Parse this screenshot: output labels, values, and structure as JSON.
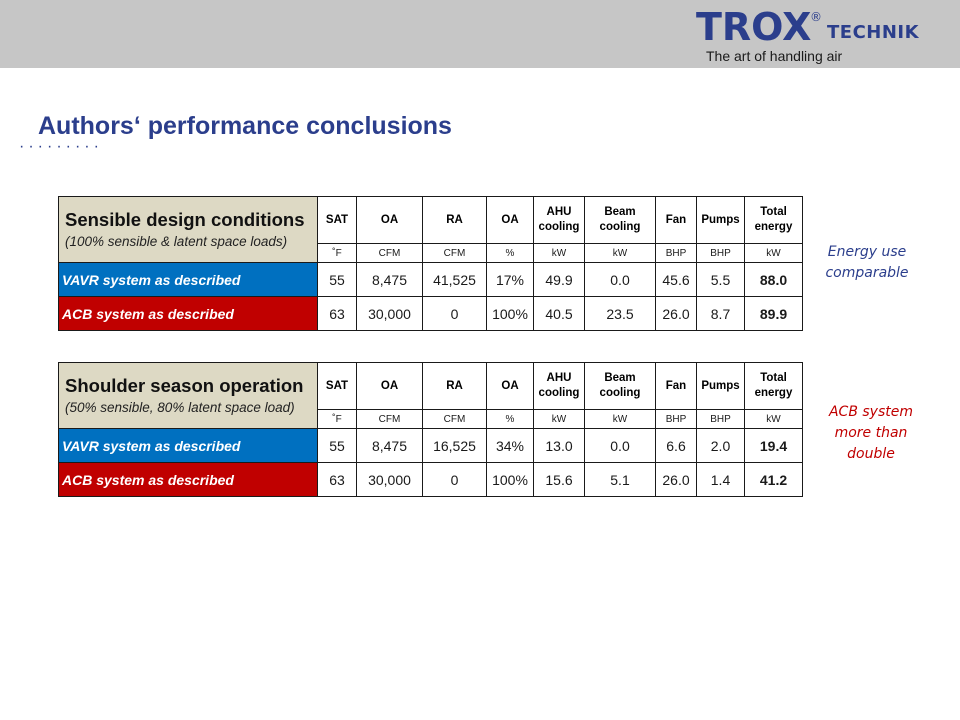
{
  "header": {
    "logo_text": "TROX",
    "logo_registered": "®",
    "logo_word": "TECHNIK",
    "tagline": "The art of handling air",
    "colors": {
      "band": "#c6c6c6",
      "brand": "#2b3e8c"
    }
  },
  "page": {
    "title": "Authors‘ performance conclusions",
    "dots": "·········"
  },
  "tables": [
    {
      "title": "Sensible design conditions",
      "subtitle": "(100% sensible & latent space loads)",
      "headers": [
        "SAT",
        "OA",
        "RA",
        "OA",
        "AHU cooling",
        "Beam cooling",
        "Fan",
        "Pumps",
        "Total energy"
      ],
      "units": [
        "˚F",
        "CFM",
        "CFM",
        "%",
        "kW",
        "kW",
        "BHP",
        "BHP",
        "kW"
      ],
      "rows": [
        {
          "label": "VAVR system as described",
          "values": [
            "55",
            "8,475",
            "41,525",
            "17%",
            "49.9",
            "0.0",
            "45.6",
            "5.5",
            "88.0"
          ]
        },
        {
          "label": "ACB system as described",
          "values": [
            "63",
            "30,000",
            "0",
            "100%",
            "40.5",
            "23.5",
            "26.0",
            "8.7",
            "89.9"
          ]
        }
      ]
    },
    {
      "title": "Shoulder season operation",
      "subtitle": "(50% sensible, 80% latent space load)",
      "headers": [
        "SAT",
        "OA",
        "RA",
        "OA",
        "AHU cooling",
        "Beam cooling",
        "Fan",
        "Pumps",
        "Total energy"
      ],
      "units": [
        "˚F",
        "CFM",
        "CFM",
        "%",
        "kW",
        "kW",
        "BHP",
        "BHP",
        "kW"
      ],
      "rows": [
        {
          "label": "VAVR system as described",
          "values": [
            "55",
            "8,475",
            "16,525",
            "34%",
            "13.0",
            "0.0",
            "6.6",
            "2.0",
            "19.4"
          ]
        },
        {
          "label": "ACB system as described",
          "values": [
            "63",
            "30,000",
            "0",
            "100%",
            "15.6",
            "5.1",
            "26.0",
            "1.4",
            "41.2"
          ]
        }
      ]
    }
  ],
  "notes": [
    {
      "text": "Energy use comparable",
      "color": "#2b3e8c"
    },
    {
      "text": "ACB system more than double",
      "color": "#c00000"
    }
  ],
  "colors": {
    "vavr_row": "#0070c0",
    "acb_row": "#c00000",
    "label_header": "#ddd9c4"
  }
}
